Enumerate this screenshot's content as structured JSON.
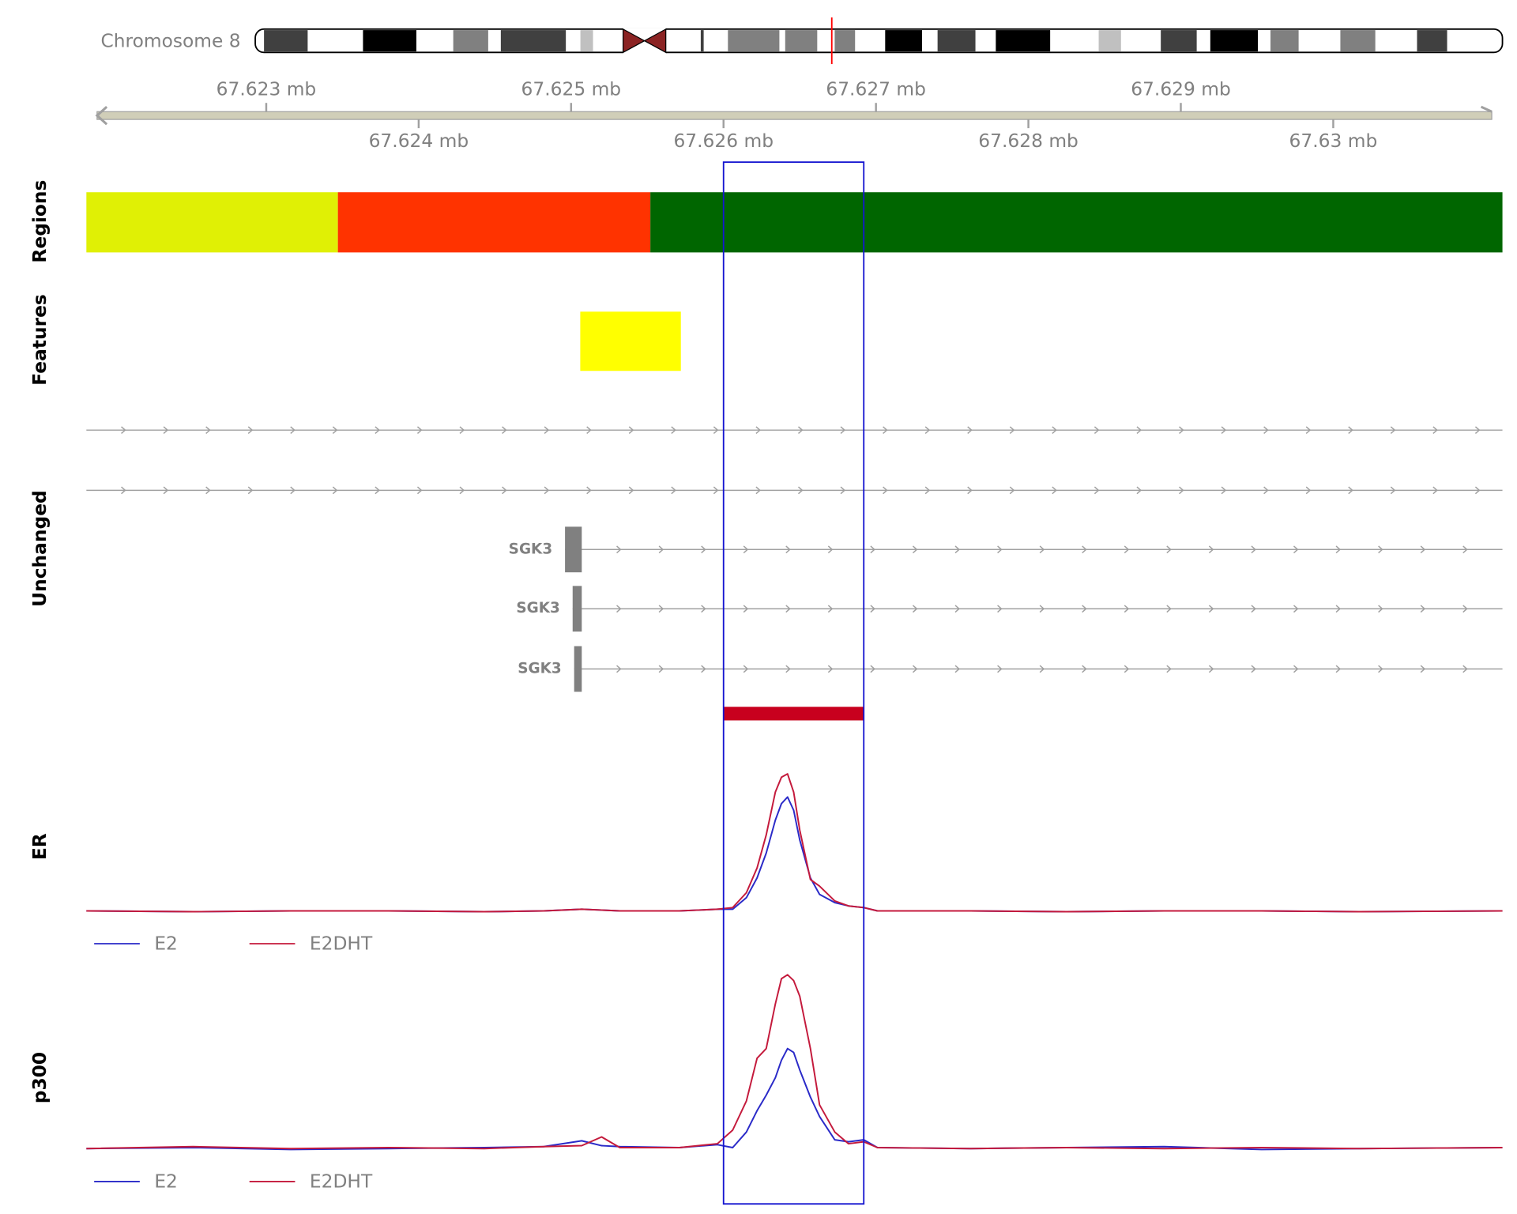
{
  "chart_data": {
    "type": "genome-tracks",
    "chromosome_label": "Chromosome 8",
    "xlim": [
      67.62182,
      67.63111
    ],
    "xticks": [
      {
        "value": 67.623,
        "label": "67.623 mb"
      },
      {
        "value": 67.624,
        "label": "67.624 mb"
      },
      {
        "value": 67.625,
        "label": "67.625 mb"
      },
      {
        "value": 67.626,
        "label": "67.626 mb"
      },
      {
        "value": 67.627,
        "label": "67.627 mb"
      },
      {
        "value": 67.628,
        "label": "67.628 mb"
      },
      {
        "value": 67.629,
        "label": "67.629 mb"
      },
      {
        "value": 67.63,
        "label": "67.63 mb"
      }
    ],
    "highlight": {
      "start": 67.626,
      "end": 67.62692,
      "color": "#1515d0"
    },
    "tracks": [
      {
        "type": "regions",
        "label": "Regions",
        "regions": [
          {
            "start": 67.62182,
            "end": 67.62347,
            "color": "#e0f005"
          },
          {
            "start": 67.62347,
            "end": 67.62552,
            "color": "#ff3300"
          },
          {
            "start": 67.62552,
            "end": 67.63111,
            "color": "#006600"
          }
        ]
      },
      {
        "type": "features",
        "label": "Features",
        "features": [
          {
            "start": 67.62506,
            "end": 67.62572,
            "color": "#ffff00"
          }
        ]
      },
      {
        "type": "genes",
        "label": "Unchanged",
        "color": "#808080",
        "transcripts": [
          {
            "label": "SGK3",
            "start": 67.62496,
            "exon_end": 67.62507
          },
          {
            "label": "SGK3",
            "start": 67.62501,
            "exon_end": 67.62507
          },
          {
            "label": "SGK3",
            "start": 67.62502,
            "exon_end": 67.62507
          }
        ],
        "peaks": [
          {
            "start": 67.626,
            "end": 67.62692,
            "color": "#c8001e"
          }
        ]
      },
      {
        "type": "signal",
        "label": "ER",
        "ylim": [
          0,
          10
        ],
        "x": [
          67.62182,
          67.62252,
          67.62316,
          67.6238,
          67.62443,
          67.62482,
          67.62507,
          67.6252,
          67.62532,
          67.62571,
          67.62596,
          67.62606,
          67.62615,
          67.62622,
          67.62628,
          67.62634,
          67.62638,
          67.62642,
          67.62646,
          67.6265,
          67.62657,
          67.62663,
          67.62673,
          67.62682,
          67.62692,
          67.62701,
          67.62762,
          67.62825,
          67.62889,
          67.62953,
          67.63017,
          67.63111
        ],
        "series": [
          {
            "name": "E2",
            "color": "#2a2ac8",
            "values": [
              0.4,
              0.35,
              0.4,
              0.4,
              0.35,
              0.4,
              0.5,
              0.45,
              0.4,
              0.4,
              0.5,
              0.5,
              1.2,
              2.4,
              3.9,
              5.9,
              6.9,
              7.3,
              6.5,
              4.7,
              2.4,
              1.4,
              0.9,
              0.7,
              0.6,
              0.4,
              0.4,
              0.35,
              0.4,
              0.4,
              0.35,
              0.4
            ]
          },
          {
            "name": "E2DHT",
            "color": "#c41a3c",
            "values": [
              0.4,
              0.35,
              0.4,
              0.4,
              0.35,
              0.4,
              0.5,
              0.45,
              0.4,
              0.4,
              0.5,
              0.6,
              1.5,
              3.0,
              5.0,
              7.6,
              8.5,
              8.7,
              7.6,
              5.3,
              2.3,
              1.9,
              1.0,
              0.7,
              0.6,
              0.4,
              0.4,
              0.35,
              0.4,
              0.4,
              0.35,
              0.4
            ]
          }
        ]
      },
      {
        "type": "signal",
        "label": "p300",
        "ylim": [
          0,
          10
        ],
        "x": [
          67.62182,
          67.62252,
          67.62316,
          67.6238,
          67.62443,
          67.62482,
          67.62507,
          67.6252,
          67.62532,
          67.62571,
          67.62596,
          67.62606,
          67.62615,
          67.62622,
          67.62628,
          67.62634,
          67.62638,
          67.62642,
          67.62646,
          67.6265,
          67.62657,
          67.62663,
          67.62673,
          67.62682,
          67.62692,
          67.62701,
          67.62762,
          67.62825,
          67.62889,
          67.62953,
          67.63017,
          67.63111
        ],
        "series": [
          {
            "name": "E2",
            "color": "#2a2ac8",
            "values": [
              0.35,
              0.4,
              0.3,
              0.35,
              0.4,
              0.45,
              0.75,
              0.5,
              0.45,
              0.4,
              0.55,
              0.4,
              1.2,
              2.3,
              3.1,
              4.0,
              4.9,
              5.5,
              5.3,
              4.4,
              3.0,
              2.0,
              0.8,
              0.7,
              0.8,
              0.4,
              0.35,
              0.4,
              0.45,
              0.3,
              0.35,
              0.4
            ]
          },
          {
            "name": "E2DHT",
            "color": "#c41a3c",
            "values": [
              0.35,
              0.45,
              0.35,
              0.4,
              0.35,
              0.45,
              0.5,
              0.95,
              0.4,
              0.4,
              0.6,
              1.3,
              2.8,
              5.0,
              5.5,
              7.8,
              9.1,
              9.3,
              9.0,
              8.2,
              5.5,
              2.6,
              1.2,
              0.6,
              0.7,
              0.4,
              0.35,
              0.4,
              0.35,
              0.4,
              0.35,
              0.4
            ]
          }
        ]
      }
    ]
  }
}
